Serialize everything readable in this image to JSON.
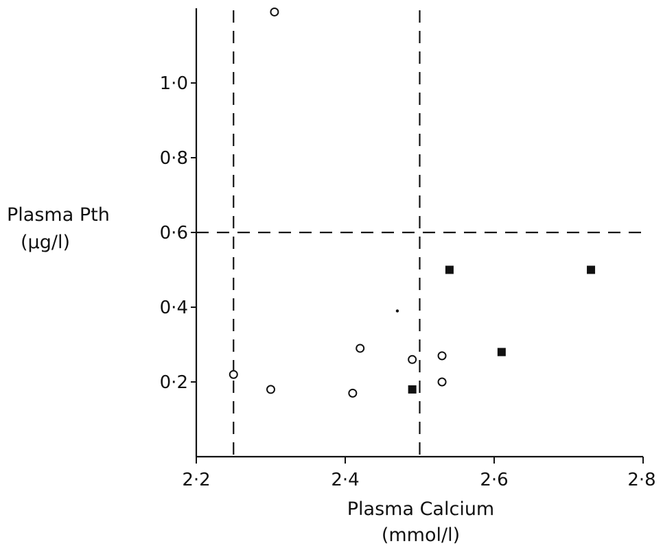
{
  "chart_data": {
    "type": "scatter",
    "title": "",
    "xlabel": "Plasma Calcium",
    "xlabel_unit": "(mmol/l)",
    "ylabel": "Plasma Pth",
    "ylabel_unit": "(µg/l)",
    "xlim": [
      2.2,
      2.8
    ],
    "ylim": [
      0.0,
      1.2
    ],
    "x_ticks": [
      {
        "value": 2.2,
        "label": "2·2"
      },
      {
        "value": 2.4,
        "label": "2·4"
      },
      {
        "value": 2.6,
        "label": "2·6"
      },
      {
        "value": 2.8,
        "label": "2·8"
      }
    ],
    "y_ticks": [
      {
        "value": 0.2,
        "label": "0·2"
      },
      {
        "value": 0.4,
        "label": "0·4"
      },
      {
        "value": 0.6,
        "label": "0·6"
      },
      {
        "value": 0.8,
        "label": "0·8"
      },
      {
        "value": 1.0,
        "label": "1·0"
      }
    ],
    "grid": false,
    "legend": "none",
    "reference_lines": [
      {
        "orientation": "vertical",
        "value": 2.25
      },
      {
        "orientation": "vertical",
        "value": 2.5
      },
      {
        "orientation": "horizontal",
        "value": 0.6
      }
    ],
    "series": [
      {
        "marker": "open-circle",
        "color": "#111111",
        "points": [
          {
            "x": 2.305,
            "y": 1.19
          },
          {
            "x": 2.25,
            "y": 0.22
          },
          {
            "x": 2.3,
            "y": 0.18
          },
          {
            "x": 2.41,
            "y": 0.17
          },
          {
            "x": 2.42,
            "y": 0.29
          },
          {
            "x": 2.49,
            "y": 0.26
          },
          {
            "x": 2.53,
            "y": 0.27
          },
          {
            "x": 2.53,
            "y": 0.2
          }
        ]
      },
      {
        "marker": "filled-square",
        "color": "#111111",
        "points": [
          {
            "x": 2.54,
            "y": 0.5
          },
          {
            "x": 2.73,
            "y": 0.5
          },
          {
            "x": 2.61,
            "y": 0.28
          },
          {
            "x": 2.49,
            "y": 0.18
          }
        ]
      },
      {
        "marker": "small-dot",
        "color": "#111111",
        "points": [
          {
            "x": 2.47,
            "y": 0.39
          }
        ]
      }
    ]
  }
}
